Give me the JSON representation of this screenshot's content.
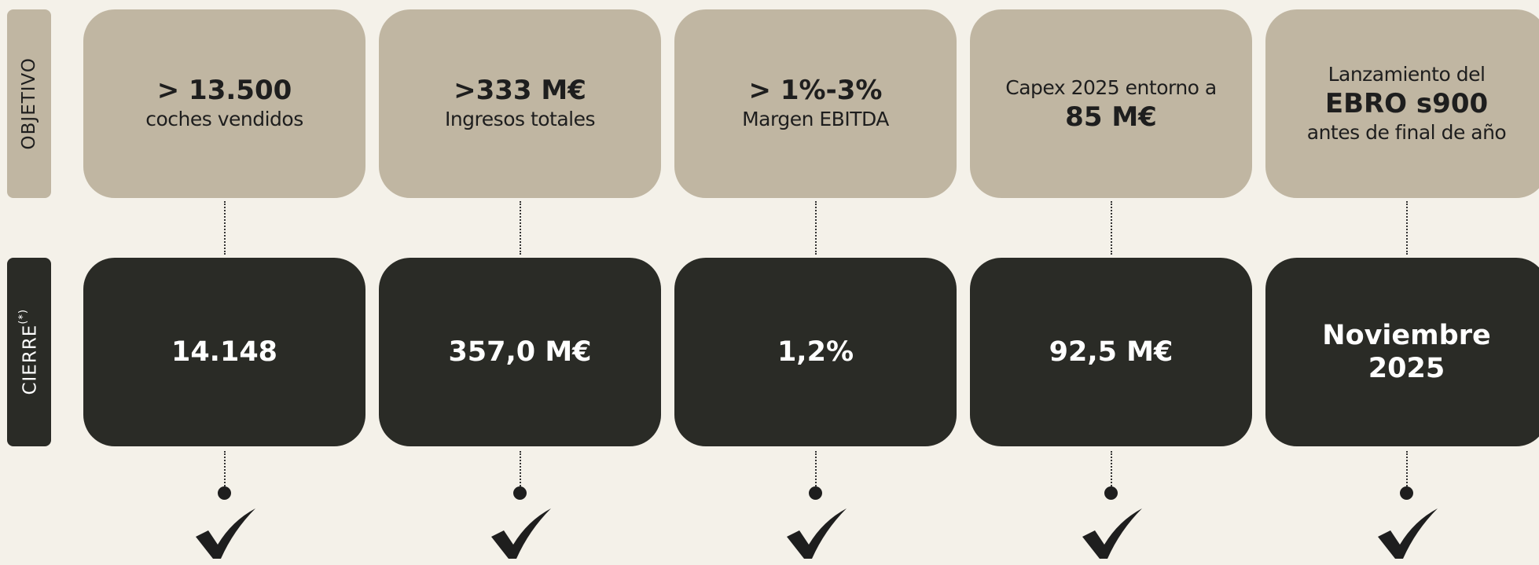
{
  "rows": {
    "objective": {
      "label": "OBJETIVO"
    },
    "closing": {
      "label": "CIERRE",
      "note": "(*)"
    }
  },
  "columns": [
    {
      "objective": [
        {
          "text": "> 13.500",
          "bold": true
        },
        {
          "text": "coches vendidos",
          "bold": false
        }
      ],
      "closing": [
        "14.148"
      ]
    },
    {
      "objective": [
        {
          "text": ">333 M€",
          "bold": true
        },
        {
          "text": "Ingresos totales",
          "bold": false
        }
      ],
      "closing": [
        "357,0 M€"
      ]
    },
    {
      "objective": [
        {
          "text": "> 1%-3%",
          "bold": true
        },
        {
          "text": "Margen EBITDA",
          "bold": false
        }
      ],
      "closing": [
        "1,2%"
      ]
    },
    {
      "objective": [
        {
          "text": "Capex 2025 entorno a",
          "bold": false
        },
        {
          "text": "85 M€",
          "bold": true
        }
      ],
      "closing": [
        "92,5 M€"
      ]
    },
    {
      "objective": [
        {
          "text": "Lanzamiento del",
          "bold": false
        },
        {
          "text": "EBRO s900",
          "bold": true
        },
        {
          "text": "antes de final de año",
          "bold": false
        }
      ],
      "closing": [
        "Noviembre",
        "2025"
      ]
    }
  ]
}
